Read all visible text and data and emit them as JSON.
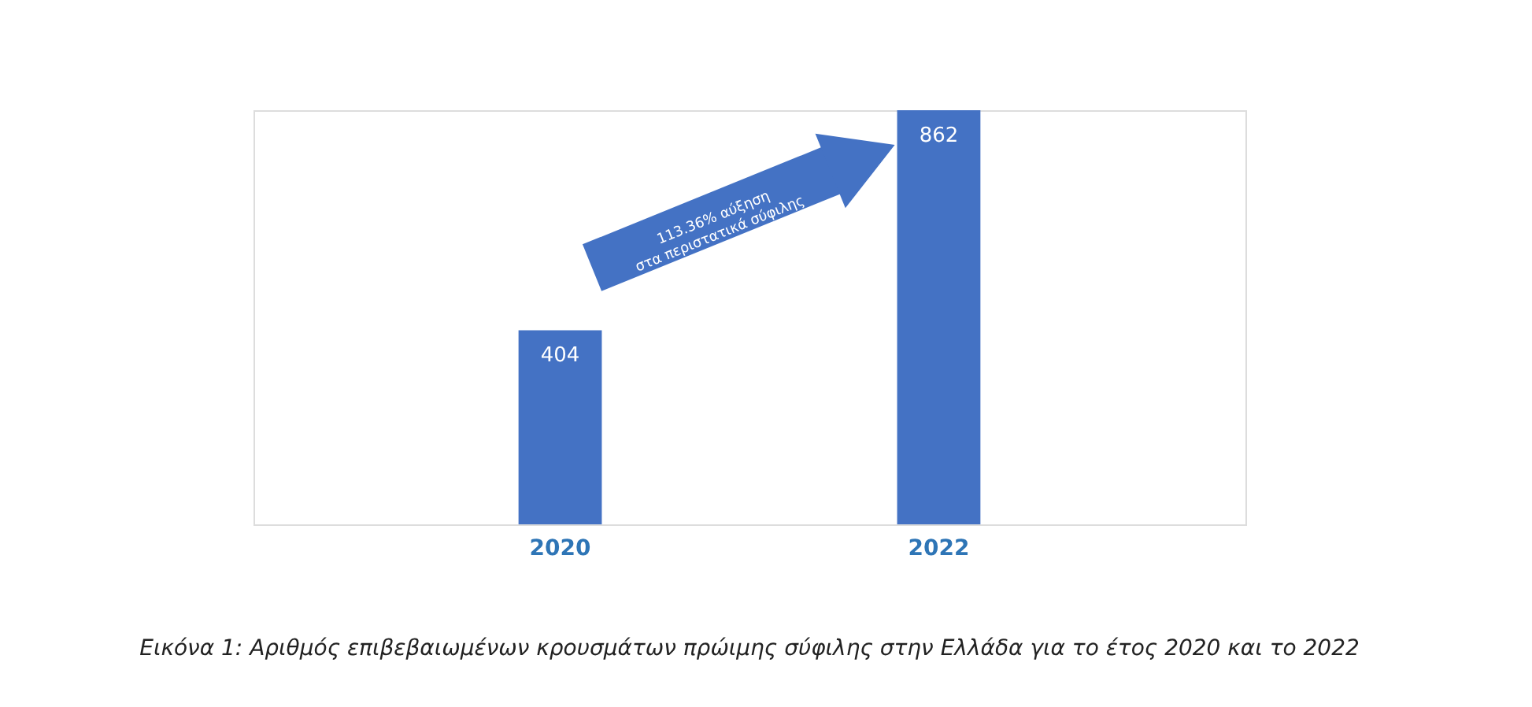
{
  "chart_data": {
    "type": "bar",
    "categories": [
      "2020",
      "2022"
    ],
    "values": [
      404,
      862
    ],
    "color": "#4472c4",
    "data_labels": true,
    "grid": false,
    "annotations": [
      "113.36% αύξηση\nστα περιστατικά σύφιλης",
      "Εικόνα 1: Αριθμός επιβεβαιωμένων κρουσμάτων πρώιμης σύφιλης στην Ελλάδα για το έτος 2020 και το 2022"
    ]
  }
}
